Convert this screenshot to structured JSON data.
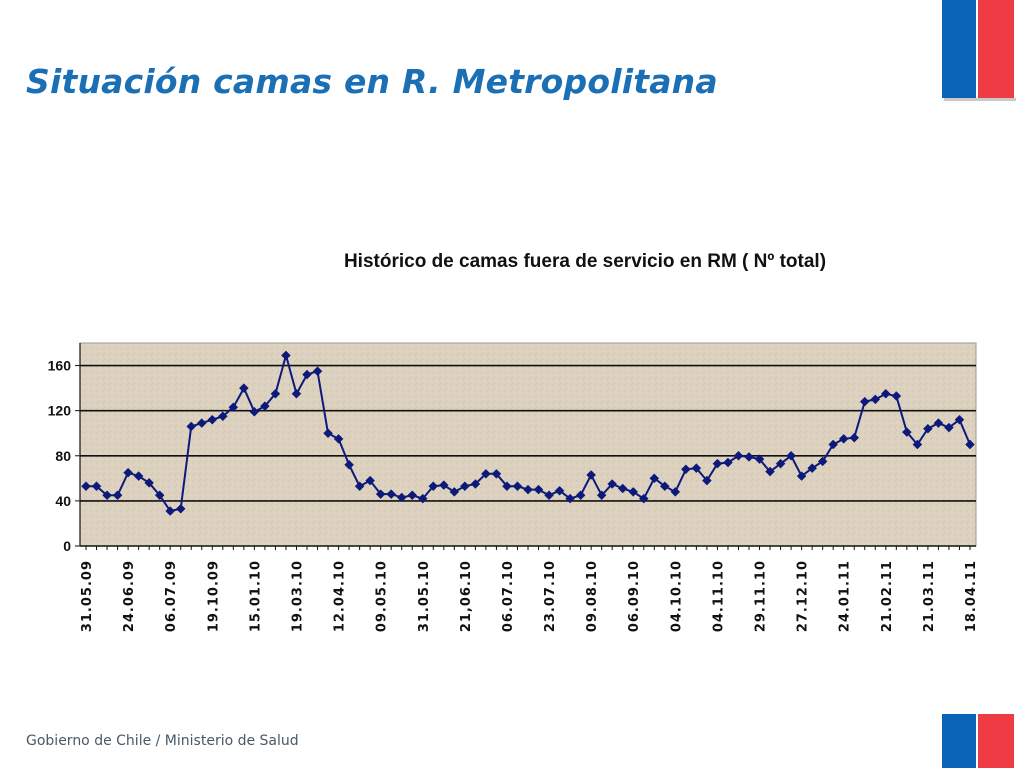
{
  "slide": {
    "title": "Situación camas en R. Metropolitana",
    "footer": "Gobierno de Chile / Ministerio de Salud"
  },
  "colors": {
    "title": "#1a6fb5",
    "series": "#0d1a7a",
    "plot_background": "#ddd2c0",
    "flag_blue": "#0b63b8",
    "flag_red": "#ef3b43"
  },
  "chart_data": {
    "type": "line",
    "title": "Histórico de camas fuera de servicio en RM ( Nº total)",
    "xlabel": "",
    "ylabel": "",
    "ylim": [
      0,
      180
    ],
    "yticks": [
      0,
      40,
      80,
      120,
      160
    ],
    "grid": true,
    "legend": "none",
    "x_tick_labels": [
      "31.05.09",
      "24.06.09",
      "06.07.09",
      "19.10.09",
      "15.01.10",
      "19.03.10",
      "12.04.10",
      "09.05.10",
      "31.05.10",
      "21,06.10",
      "06.07.10",
      "23.07.10",
      "09.08.10",
      "06.09.10",
      "04.10.10",
      "04.11.10",
      "29.11.10",
      "27.12.10",
      "24.01.11",
      "21.02.11",
      "21.03.11",
      "18.04.11"
    ],
    "series": [
      {
        "values": [
          53,
          53,
          45,
          45,
          65,
          62,
          56,
          45,
          31,
          33,
          106,
          109,
          112,
          115,
          123,
          140,
          119,
          124,
          135,
          169,
          135,
          152,
          155,
          100,
          95,
          72,
          53,
          58,
          46,
          46,
          43,
          45,
          42,
          53,
          54,
          48,
          53,
          55,
          64,
          64,
          53,
          53,
          50,
          50,
          45,
          49,
          42,
          45,
          63,
          45,
          55,
          51,
          48,
          42,
          60,
          53,
          48,
          68,
          69,
          58,
          73,
          74,
          80,
          79,
          77,
          66,
          73,
          80,
          62,
          69,
          75,
          90,
          95,
          96,
          128,
          130,
          135,
          133,
          101,
          90,
          104,
          109,
          105,
          112,
          90
        ]
      }
    ]
  }
}
